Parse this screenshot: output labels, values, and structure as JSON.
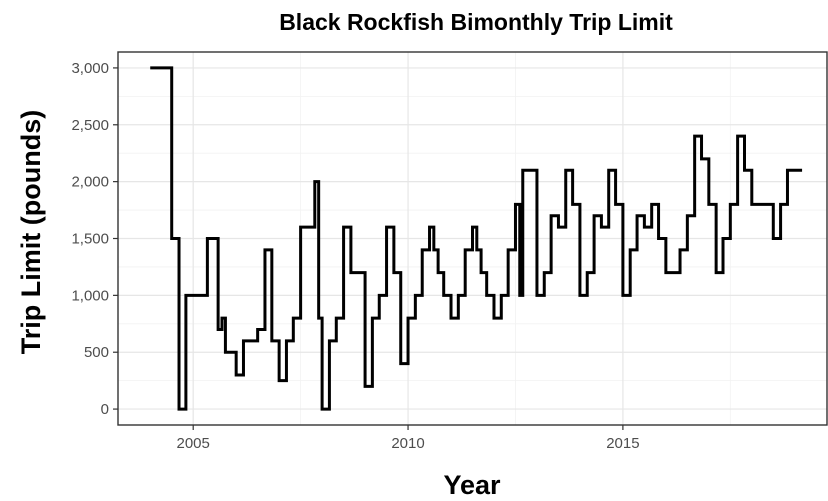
{
  "colors": {
    "series": "#000000"
  },
  "chart_data": {
    "type": "line",
    "step": true,
    "title": "Black Rockfish Bimonthly Trip Limit",
    "xlabel": "Year",
    "ylabel": "Trip Limit (pounds)",
    "xlim": [
      2003.25,
      2019.75
    ],
    "ylim": [
      -140,
      3140
    ],
    "x_ticks": [
      {
        "value": 2005,
        "label": "2005"
      },
      {
        "value": 2010,
        "label": "2010"
      },
      {
        "value": 2015,
        "label": "2015"
      }
    ],
    "y_ticks": [
      {
        "value": 0,
        "label": "0"
      },
      {
        "value": 500,
        "label": "500"
      },
      {
        "value": 1000,
        "label": "1,000"
      },
      {
        "value": 1500,
        "label": "1,500"
      },
      {
        "value": 2000,
        "label": "2,000"
      },
      {
        "value": 2500,
        "label": "2,500"
      },
      {
        "value": 3000,
        "label": "3,000"
      }
    ],
    "grid": true,
    "legend": "none",
    "series": [
      {
        "x": [
          2004.0,
          2004.5,
          2004.67,
          2004.83,
          2005.0,
          2005.33,
          2005.58,
          2005.67,
          2005.75,
          2005.83,
          2006.0,
          2006.17,
          2006.33,
          2006.5,
          2006.67,
          2006.83,
          2007.0,
          2007.17,
          2007.33,
          2007.5,
          2007.67,
          2007.83,
          2007.92,
          2008.0,
          2008.17,
          2008.33,
          2008.5,
          2008.67,
          2008.83,
          2009.0,
          2009.17,
          2009.33,
          2009.5,
          2009.67,
          2009.83,
          2010.0,
          2010.17,
          2010.33,
          2010.5,
          2010.6,
          2010.7,
          2010.83,
          2011.0,
          2011.17,
          2011.33,
          2011.5,
          2011.6,
          2011.7,
          2011.83,
          2012.0,
          2012.17,
          2012.33,
          2012.5,
          2012.6,
          2012.67,
          2012.83,
          2013.0,
          2013.17,
          2013.33,
          2013.5,
          2013.67,
          2013.83,
          2014.0,
          2014.17,
          2014.33,
          2014.5,
          2014.67,
          2014.83,
          2015.0,
          2015.17,
          2015.33,
          2015.5,
          2015.67,
          2015.83,
          2016.0,
          2016.17,
          2016.33,
          2016.5,
          2016.67,
          2016.83,
          2017.0,
          2017.17,
          2017.33,
          2017.5,
          2017.67,
          2017.83,
          2018.0,
          2018.5,
          2018.67,
          2018.83,
          2019.17
        ],
        "y": [
          3000,
          1500,
          0,
          1000,
          1000,
          1500,
          700,
          800,
          500,
          500,
          300,
          600,
          600,
          700,
          1400,
          600,
          250,
          600,
          800,
          1600,
          1600,
          2000,
          800,
          0,
          600,
          800,
          1600,
          1200,
          1200,
          200,
          800,
          1000,
          1600,
          1200,
          400,
          800,
          1000,
          1400,
          1600,
          1400,
          1200,
          1000,
          800,
          1000,
          1400,
          1600,
          1400,
          1200,
          1000,
          800,
          1000,
          1400,
          1800,
          1000,
          2100,
          2100,
          1000,
          1200,
          1700,
          1600,
          2100,
          1800,
          1000,
          1200,
          1700,
          1600,
          2100,
          1800,
          1000,
          1400,
          1700,
          1600,
          1800,
          1500,
          1200,
          1200,
          1400,
          1700,
          2400,
          2200,
          1800,
          1200,
          1500,
          1800,
          2400,
          2100,
          1800,
          1500,
          1800,
          2100,
          2100
        ]
      }
    ]
  }
}
